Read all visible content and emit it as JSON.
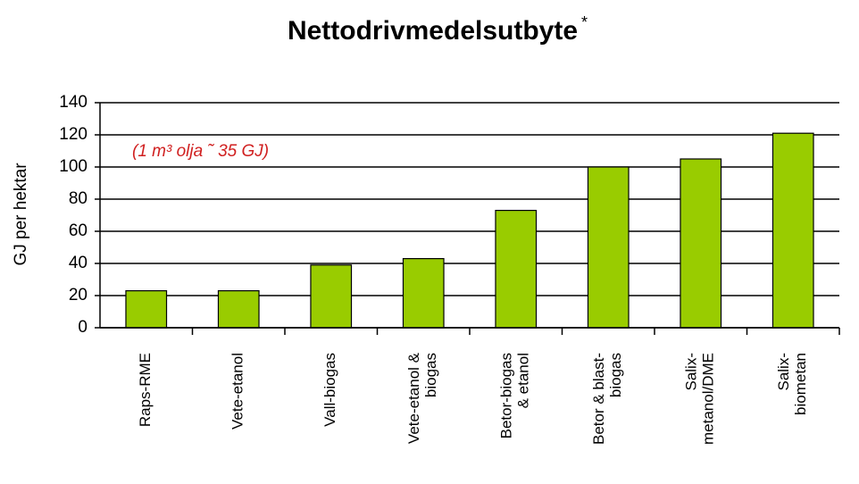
{
  "chart_data": {
    "type": "bar",
    "title": "Nettodrivmedelsutbyte",
    "title_note": "*",
    "y_label": "GJ per hektar",
    "annotation": "(1 m³ olja ˜  35 GJ)",
    "categories": [
      [
        "Raps-RME"
      ],
      [
        "Vete-etanol"
      ],
      [
        "Vall-biogas"
      ],
      [
        "Vete-etanol &",
        "biogas"
      ],
      [
        "Betor-biogas",
        "& etanol"
      ],
      [
        "Betor & blast-",
        "biogas"
      ],
      [
        "Salix-",
        "metanol/DME"
      ],
      [
        "Salix-",
        "biometan"
      ]
    ],
    "values": [
      23,
      23,
      39,
      43,
      73,
      100,
      105,
      121
    ],
    "color": "#99cc00",
    "ylim": [
      0,
      140
    ],
    "yticks": [
      0,
      20,
      40,
      60,
      80,
      100,
      120,
      140
    ],
    "grid": true
  }
}
